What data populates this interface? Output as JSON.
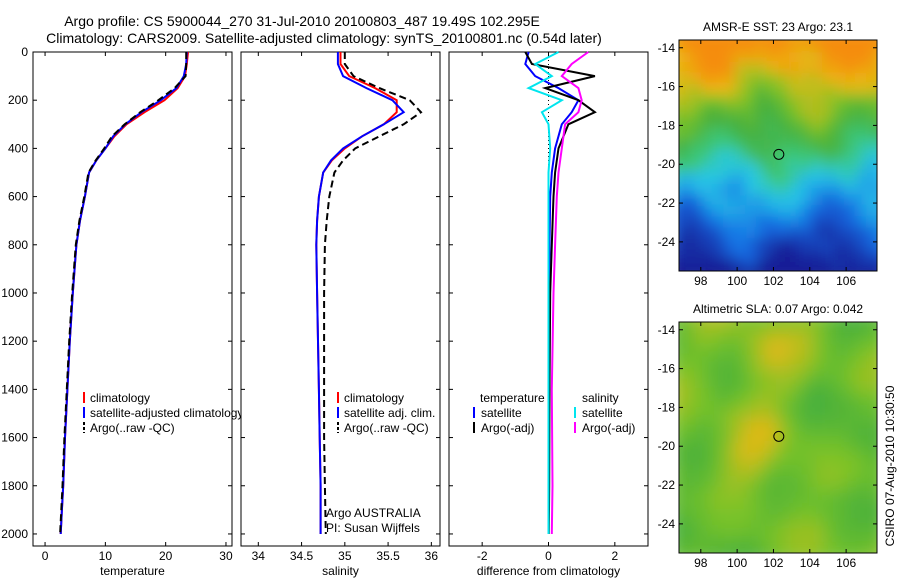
{
  "title": {
    "line1": "Argo profile: CS 5900044_270 31-Jul-2010 20100803_487 19.49S 102.295E",
    "line2": "Climatology: CARS2009. Satellite-adjusted climatology: synTS_20100801.nc (0.54d later)"
  },
  "footer": "CSIRO 07-Aug-2010 10:30:50",
  "colors": {
    "climatology": "#ff0000",
    "satellite": "#0000ff",
    "argo": "#000000",
    "salinity_satellite": "#00e5ee",
    "salinity_argo": "#ff00ff"
  },
  "chart_data": [
    {
      "type": "line",
      "id": "temperature",
      "xlabel": "temperature",
      "ylabel": "",
      "xlim": [
        -2,
        31
      ],
      "ylim": [
        2050,
        0
      ],
      "xticks": [
        0,
        10,
        20,
        30
      ],
      "yticks": [
        0,
        200,
        400,
        600,
        800,
        1000,
        1200,
        1400,
        1600,
        1800,
        2000
      ],
      "legend": [
        "climatology",
        "satellite-adjusted climatology",
        "Argo(..raw -QC)"
      ],
      "series": [
        {
          "name": "climatology",
          "color": "#ff0000",
          "dash": "solid",
          "x": [
            23.7,
            23.5,
            23.2,
            22.0,
            19.8,
            16.5,
            13.5,
            11.5,
            10.0,
            8.5,
            7.3,
            6.6,
            5.8,
            5.2,
            4.6,
            4.1,
            3.7,
            3.3,
            3.0,
            2.8,
            2.6
          ],
          "y": [
            0,
            50,
            100,
            150,
            200,
            250,
            300,
            350,
            400,
            450,
            500,
            600,
            700,
            800,
            1000,
            1200,
            1400,
            1600,
            1800,
            1900,
            2000
          ]
        },
        {
          "name": "satellite-adjusted climatology",
          "color": "#0000ff",
          "dash": "solid",
          "x": [
            23.5,
            23.4,
            23.0,
            21.8,
            19.2,
            16.0,
            13.3,
            11.3,
            10.0,
            8.5,
            7.3,
            6.6,
            5.8,
            5.2,
            4.6,
            4.1,
            3.7,
            3.3,
            3.0,
            2.8,
            2.6
          ],
          "y": [
            0,
            50,
            100,
            150,
            200,
            250,
            300,
            350,
            400,
            450,
            500,
            600,
            700,
            800,
            1000,
            1200,
            1400,
            1600,
            1800,
            1900,
            2000
          ]
        },
        {
          "name": "Argo(..raw -QC)",
          "color": "#000000",
          "dash": "dashed",
          "x": [
            23.4,
            23.4,
            23.3,
            21.5,
            18.8,
            15.8,
            13.2,
            11.1,
            9.8,
            8.4,
            7.2,
            6.5,
            5.7,
            5.1,
            4.5,
            4.0,
            3.6,
            3.2,
            2.9,
            2.7,
            2.5
          ],
          "y": [
            0,
            50,
            100,
            150,
            200,
            250,
            300,
            350,
            400,
            450,
            500,
            600,
            700,
            800,
            1000,
            1200,
            1400,
            1600,
            1800,
            1900,
            2000
          ]
        }
      ]
    },
    {
      "type": "line",
      "id": "salinity",
      "xlabel": "salinity",
      "xlim": [
        33.8,
        36.1
      ],
      "ylim": [
        2050,
        0
      ],
      "xticks": [
        34,
        34.5,
        35,
        35.5,
        36
      ],
      "xtick_labels": [
        "34",
        "34.5",
        "35",
        "35.5",
        "36"
      ],
      "legend": [
        "climatology",
        "satellite adj. clim.",
        "Argo(..raw -QC)"
      ],
      "annotations": [
        "Argo AUSTRALIA",
        "PI: Susan Wijffels"
      ],
      "series": [
        {
          "name": "climatology",
          "color": "#ff0000",
          "dash": "solid",
          "x": [
            34.95,
            34.95,
            35.05,
            35.35,
            35.6,
            35.6,
            35.45,
            35.2,
            35.0,
            34.85,
            34.75,
            34.7,
            34.68,
            34.67,
            34.68,
            34.69,
            34.7,
            34.71,
            34.72,
            34.72
          ],
          "y": [
            0,
            50,
            100,
            150,
            200,
            250,
            300,
            350,
            400,
            450,
            500,
            600,
            700,
            800,
            1000,
            1200,
            1400,
            1600,
            1800,
            2000
          ]
        },
        {
          "name": "satellite adj. clim.",
          "color": "#0000ff",
          "dash": "solid",
          "x": [
            34.92,
            34.92,
            34.98,
            35.25,
            35.55,
            35.68,
            35.45,
            35.2,
            34.98,
            34.84,
            34.75,
            34.7,
            34.68,
            34.67,
            34.68,
            34.69,
            34.7,
            34.71,
            34.72,
            34.72
          ],
          "y": [
            0,
            50,
            100,
            150,
            200,
            250,
            300,
            350,
            400,
            450,
            500,
            600,
            700,
            800,
            1000,
            1200,
            1400,
            1600,
            1800,
            2000
          ]
        },
        {
          "name": "Argo(..raw -QC)",
          "color": "#000000",
          "dash": "dashed",
          "x": [
            35.0,
            35.0,
            35.1,
            35.4,
            35.75,
            35.88,
            35.68,
            35.4,
            35.12,
            34.98,
            34.88,
            34.82,
            34.79,
            34.77,
            34.76,
            34.76,
            34.76,
            34.76,
            34.77,
            34.78
          ],
          "y": [
            0,
            50,
            100,
            150,
            200,
            250,
            300,
            350,
            400,
            450,
            500,
            600,
            700,
            800,
            1000,
            1200,
            1400,
            1600,
            1800,
            2000
          ]
        }
      ]
    },
    {
      "type": "line",
      "id": "difference",
      "xlabel": "difference from climatology",
      "xlim": [
        -3,
        3
      ],
      "ylim": [
        2050,
        0
      ],
      "xticks": [
        -2,
        0,
        2
      ],
      "legend_temperature": [
        "temperature",
        "satellite",
        "Argo(-adj)"
      ],
      "legend_salinity": [
        "salinity",
        "satellite",
        "Argo(-adj)"
      ],
      "series": [
        {
          "name": "temperature satellite",
          "color": "#0000ff",
          "dash": "solid",
          "x": [
            -0.6,
            -0.7,
            -0.4,
            0.3,
            0.9,
            0.7,
            0.4,
            0.2,
            0.1,
            0.05,
            0.03,
            0.02,
            0.01,
            0.0,
            0.0
          ],
          "y": [
            0,
            50,
            100,
            150,
            200,
            250,
            300,
            400,
            500,
            600,
            800,
            1000,
            1400,
            1800,
            2000
          ]
        },
        {
          "name": "temperature Argo(-adj)",
          "color": "#000000",
          "dash": "solid",
          "x": [
            -0.7,
            -0.5,
            1.4,
            -0.1,
            0.9,
            1.4,
            0.6,
            0.3,
            0.2,
            0.15,
            0.1,
            0.05,
            0.03,
            0.02,
            0.01
          ],
          "y": [
            0,
            50,
            100,
            150,
            200,
            250,
            300,
            400,
            500,
            600,
            800,
            1000,
            1400,
            1800,
            2000
          ]
        },
        {
          "name": "salinity satellite",
          "color": "#00e5ee",
          "dash": "solid",
          "x": [
            0.3,
            -0.4,
            0.1,
            -0.6,
            0.4,
            -0.2,
            0.0,
            0.05,
            0.0,
            0.0,
            0.0,
            0.0,
            0.0,
            0.0,
            0.0
          ],
          "y": [
            0,
            50,
            100,
            150,
            200,
            250,
            300,
            400,
            500,
            600,
            800,
            1000,
            1400,
            1800,
            2000
          ]
        },
        {
          "name": "salinity Argo(-adj)",
          "color": "#ff00ff",
          "dash": "solid",
          "x": [
            1.2,
            0.7,
            0.4,
            0.9,
            1.0,
            0.9,
            0.5,
            0.4,
            0.3,
            0.25,
            0.2,
            0.15,
            0.1,
            0.12,
            0.1
          ],
          "y": [
            0,
            50,
            100,
            150,
            200,
            250,
            300,
            400,
            500,
            600,
            800,
            1000,
            1400,
            1800,
            2000
          ]
        }
      ]
    },
    {
      "type": "heatmap",
      "id": "sst-map",
      "title": "AMSR-E SST: 23 Argo: 23.1",
      "xlim": [
        96.8,
        107.7
      ],
      "ylim": [
        -25.5,
        -13.6
      ],
      "xticks": [
        98,
        100,
        102,
        104,
        106
      ],
      "yticks": [
        -14,
        -16,
        -18,
        -20,
        -22,
        -24
      ],
      "marker": {
        "lon": 102.295,
        "lat": -19.49
      }
    },
    {
      "type": "heatmap",
      "id": "sla-map",
      "title": "Altimetric SLA: 0.07 Argo: 0.042",
      "xlim": [
        96.8,
        107.7
      ],
      "ylim": [
        -25.5,
        -13.6
      ],
      "xticks": [
        98,
        100,
        102,
        104,
        106
      ],
      "yticks": [
        -14,
        -16,
        -18,
        -20,
        -22,
        -24
      ],
      "marker": {
        "lon": 102.295,
        "lat": -19.49
      }
    }
  ]
}
